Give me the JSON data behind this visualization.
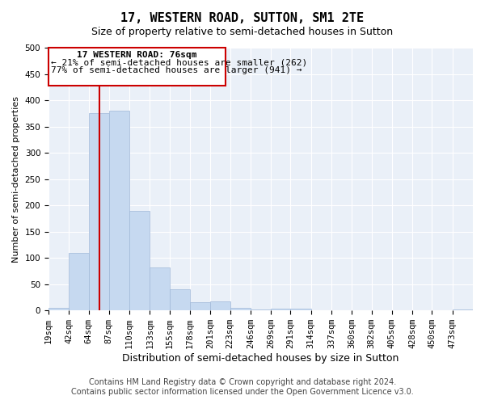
{
  "title": "17, WESTERN ROAD, SUTTON, SM1 2TE",
  "subtitle": "Size of property relative to semi-detached houses in Sutton",
  "xlabel": "Distribution of semi-detached houses by size in Sutton",
  "ylabel": "Number of semi-detached properties",
  "footer_line1": "Contains HM Land Registry data © Crown copyright and database right 2024.",
  "footer_line2": "Contains public sector information licensed under the Open Government Licence v3.0.",
  "annotation_title": "17 WESTERN ROAD: 76sqm",
  "annotation_line1": "← 21% of semi-detached houses are smaller (262)",
  "annotation_line2": "77% of semi-detached houses are larger (941) →",
  "property_value": 76,
  "bar_edges": [
    19,
    42,
    64,
    87,
    110,
    133,
    155,
    178,
    201,
    223,
    246,
    269,
    291,
    314,
    337,
    360,
    382,
    405,
    428,
    450,
    473,
    496
  ],
  "bar_heights": [
    5,
    110,
    375,
    380,
    190,
    82,
    40,
    15,
    17,
    5,
    2,
    4,
    4,
    1,
    0,
    0,
    0,
    0,
    0,
    0,
    2
  ],
  "bar_color": "#c6d9f0",
  "bar_edge_color": "#a0b8d8",
  "vline_color": "#cc0000",
  "vline_x": 76,
  "annotation_box_color": "#cc0000",
  "background_color": "#ffffff",
  "plot_bg_color": "#eaf0f8",
  "grid_color": "#ffffff",
  "ylim": [
    0,
    500
  ],
  "yticks": [
    0,
    50,
    100,
    150,
    200,
    250,
    300,
    350,
    400,
    450,
    500
  ],
  "title_fontsize": 11,
  "subtitle_fontsize": 9,
  "xlabel_fontsize": 9,
  "ylabel_fontsize": 8,
  "tick_fontsize": 7.5,
  "annotation_fontsize": 8,
  "footer_fontsize": 7
}
